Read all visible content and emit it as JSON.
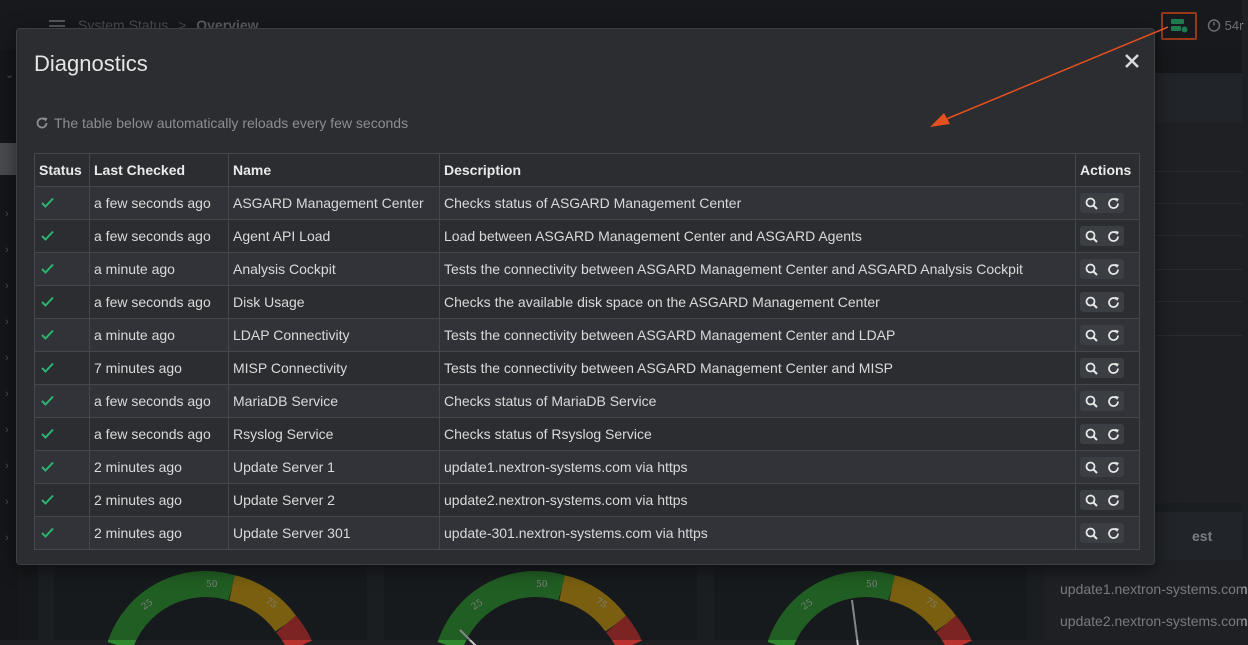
{
  "topbar": {
    "breadcrumb_root": "System Status",
    "breadcrumb_sep": ">",
    "breadcrumb_current": "Overview",
    "refresh_label": "54r"
  },
  "right_panel": {
    "header": "est",
    "items": [
      "update1.nextron-systems.com",
      "update2.nextron-systems.com"
    ]
  },
  "gauges": [
    {
      "labels": [
        "25",
        "50",
        "75"
      ]
    },
    {
      "labels": [
        "25",
        "50",
        "75"
      ]
    },
    {
      "labels": [
        "25",
        "50",
        "75"
      ]
    }
  ],
  "modal": {
    "title": "Diagnostics",
    "info_text": "The table below automatically reloads every few seconds",
    "columns": {
      "status": "Status",
      "last_checked": "Last Checked",
      "name": "Name",
      "description": "Description",
      "actions": "Actions"
    },
    "rows": [
      {
        "status": "ok",
        "last_checked": "a few seconds ago",
        "name": "ASGARD Management Center",
        "description": "Checks status of ASGARD Management Center"
      },
      {
        "status": "ok",
        "last_checked": "a few seconds ago",
        "name": "Agent API Load",
        "description": "Load between ASGARD Management Center and ASGARD Agents"
      },
      {
        "status": "ok",
        "last_checked": "a minute ago",
        "name": "Analysis Cockpit",
        "description": "Tests the connectivity between ASGARD Management Center and ASGARD Analysis Cockpit"
      },
      {
        "status": "ok",
        "last_checked": "a few seconds ago",
        "name": "Disk Usage",
        "description": "Checks the available disk space on the ASGARD Management Center"
      },
      {
        "status": "ok",
        "last_checked": "a minute ago",
        "name": "LDAP Connectivity",
        "description": "Tests the connectivity between ASGARD Management Center and LDAP"
      },
      {
        "status": "ok",
        "last_checked": "7 minutes ago",
        "name": "MISP Connectivity",
        "description": "Tests the connectivity between ASGARD Management Center and MISP"
      },
      {
        "status": "ok",
        "last_checked": "a few seconds ago",
        "name": "MariaDB Service",
        "description": "Checks status of MariaDB Service"
      },
      {
        "status": "ok",
        "last_checked": "a few seconds ago",
        "name": "Rsyslog Service",
        "description": "Checks status of Rsyslog Service"
      },
      {
        "status": "ok",
        "last_checked": "2 minutes ago",
        "name": "Update Server 1",
        "description": "update1.nextron-systems.com via https"
      },
      {
        "status": "ok",
        "last_checked": "2 minutes ago",
        "name": "Update Server 2",
        "description": "update2.nextron-systems.com via https"
      },
      {
        "status": "ok",
        "last_checked": "2 minutes ago",
        "name": "Update Server 301",
        "description": "update-301.nextron-systems.com via https"
      }
    ]
  },
  "colors": {
    "status_ok": "#2bb673",
    "annotation_arrow": "#e4501f",
    "diagnostics_icon": "#2bb673"
  },
  "icons": {
    "close": "close-icon",
    "reload_info": "reload-icon",
    "inspect": "search-icon",
    "rerun": "refresh-icon",
    "status_ok": "check-icon"
  }
}
